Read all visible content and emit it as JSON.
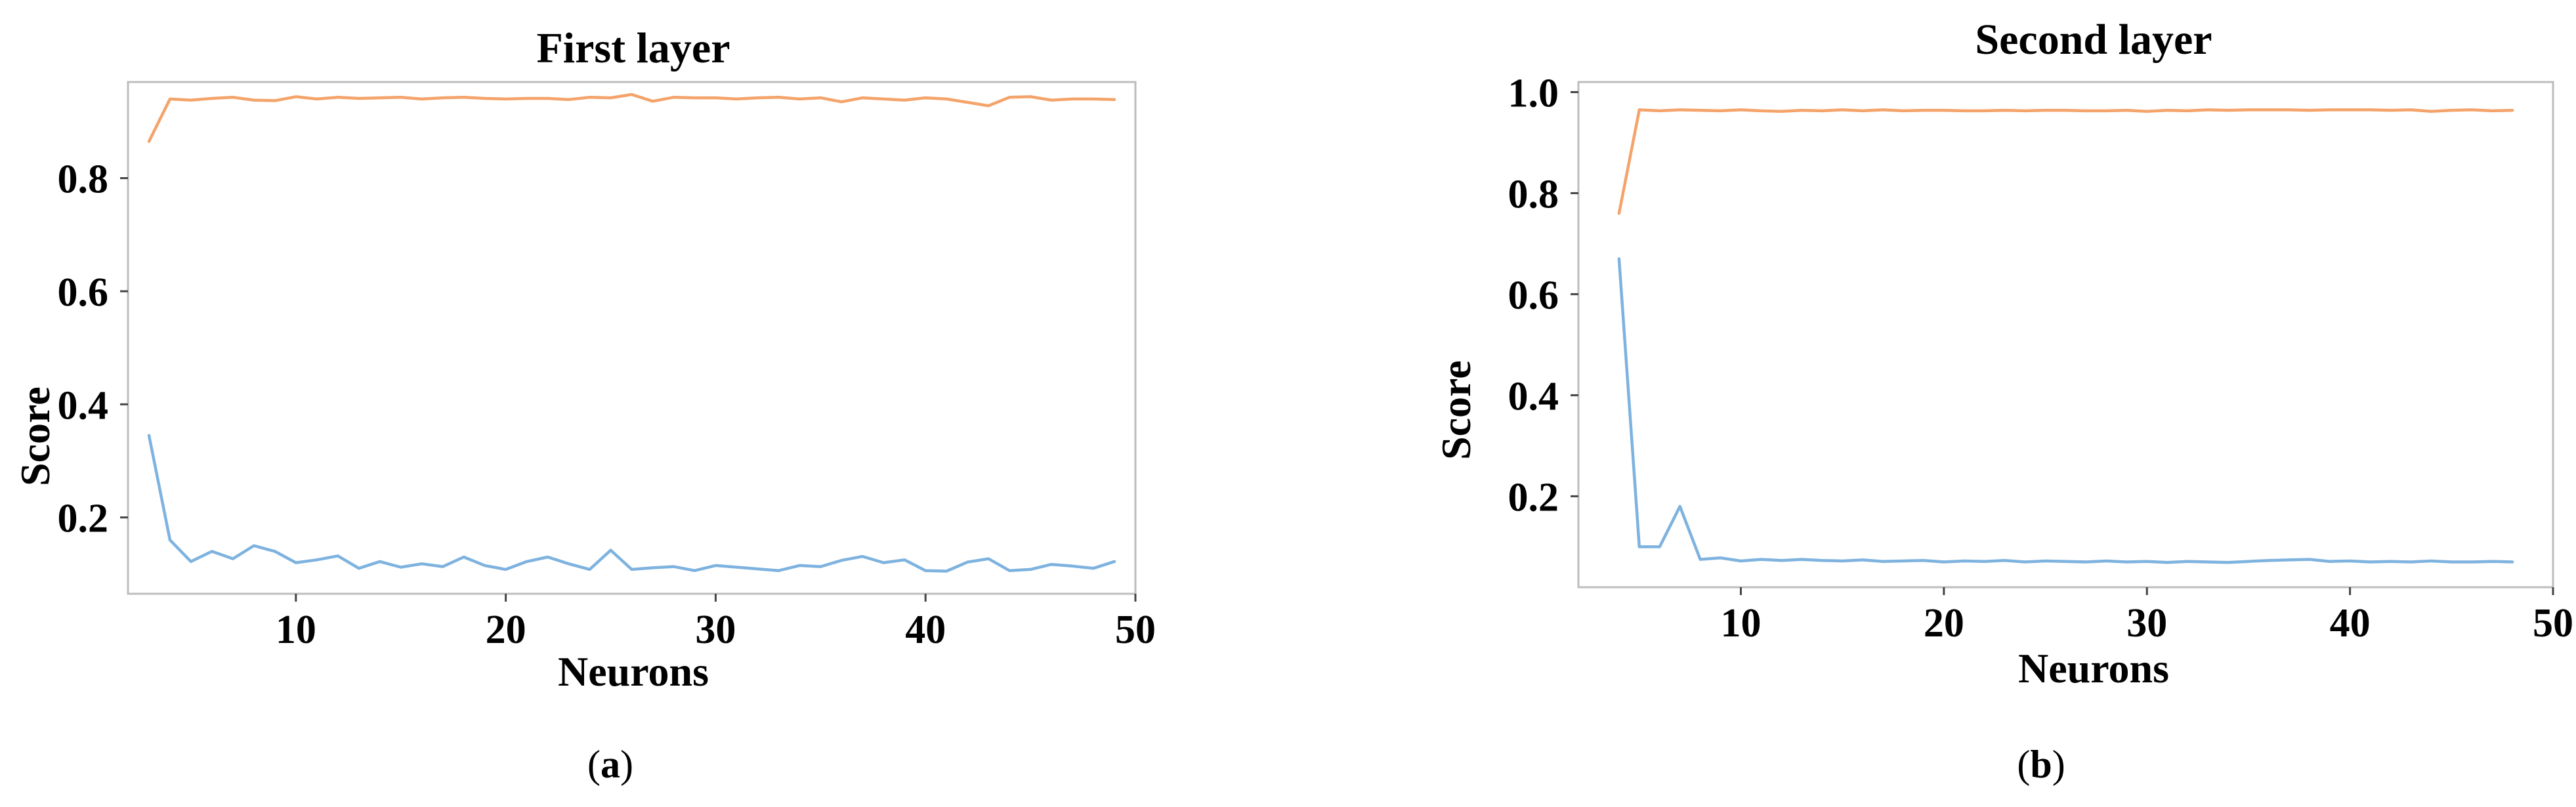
{
  "colors": {
    "series_upper": "#f4a36a",
    "series_lower": "#7eb2df"
  },
  "chart_data": [
    {
      "type": "line",
      "title": "First layer",
      "xlabel": "Neurons",
      "ylabel": "Score",
      "xlim": [
        2,
        50
      ],
      "ylim": [
        0.065,
        0.97
      ],
      "xticks": [
        10,
        20,
        30,
        40,
        50
      ],
      "yticks": [
        0.2,
        0.4,
        0.6,
        0.8
      ],
      "xtick_labels": [
        "10",
        "20",
        "30",
        "40",
        "50"
      ],
      "ytick_labels": [
        "0.2",
        "0.4",
        "0.6",
        "0.8"
      ],
      "caption": "(a)",
      "caption_letter": "a",
      "grid": false,
      "x": [
        3,
        4,
        5,
        6,
        7,
        8,
        9,
        10,
        11,
        12,
        13,
        14,
        15,
        16,
        17,
        18,
        19,
        20,
        21,
        22,
        23,
        24,
        25,
        26,
        27,
        28,
        29,
        30,
        31,
        32,
        33,
        34,
        35,
        36,
        37,
        38,
        39,
        40,
        41,
        42,
        43,
        44,
        45,
        46,
        47,
        48,
        49
      ],
      "series": [
        {
          "color": "#f4a36a",
          "values": [
            0.865,
            0.94,
            0.938,
            0.941,
            0.943,
            0.938,
            0.937,
            0.944,
            0.94,
            0.943,
            0.941,
            0.942,
            0.943,
            0.94,
            0.942,
            0.943,
            0.941,
            0.94,
            0.941,
            0.941,
            0.939,
            0.943,
            0.942,
            0.948,
            0.936,
            0.943,
            0.942,
            0.942,
            0.94,
            0.942,
            0.943,
            0.94,
            0.942,
            0.935,
            0.942,
            0.94,
            0.938,
            0.942,
            0.94,
            0.934,
            0.928,
            0.943,
            0.944,
            0.938,
            0.94,
            0.94,
            0.939
          ]
        },
        {
          "color": "#7eb2df",
          "values": [
            0.345,
            0.16,
            0.122,
            0.14,
            0.127,
            0.15,
            0.14,
            0.12,
            0.125,
            0.132,
            0.11,
            0.122,
            0.112,
            0.118,
            0.113,
            0.13,
            0.115,
            0.108,
            0.122,
            0.13,
            0.118,
            0.108,
            0.142,
            0.108,
            0.111,
            0.113,
            0.106,
            0.115,
            0.112,
            0.109,
            0.106,
            0.115,
            0.113,
            0.124,
            0.131,
            0.12,
            0.125,
            0.106,
            0.105,
            0.121,
            0.127,
            0.106,
            0.108,
            0.117,
            0.114,
            0.11,
            0.122
          ]
        }
      ]
    },
    {
      "type": "line",
      "title": "Second layer",
      "xlabel": "Neurons",
      "ylabel": "Score",
      "xlim": [
        2,
        50
      ],
      "ylim": [
        0.02,
        1.02
      ],
      "xticks": [
        10,
        20,
        30,
        40,
        50
      ],
      "yticks": [
        0.2,
        0.4,
        0.6,
        0.8,
        1.0
      ],
      "xtick_labels": [
        "10",
        "20",
        "30",
        "40",
        "50"
      ],
      "ytick_labels": [
        "0.2",
        "0.4",
        "0.6",
        "0.8",
        "1.0"
      ],
      "caption": "(b)",
      "caption_letter": "b",
      "grid": false,
      "x": [
        4,
        5,
        6,
        7,
        8,
        9,
        10,
        11,
        12,
        13,
        14,
        15,
        16,
        17,
        18,
        19,
        20,
        21,
        22,
        23,
        24,
        25,
        26,
        27,
        28,
        29,
        30,
        31,
        32,
        33,
        34,
        35,
        36,
        37,
        38,
        39,
        40,
        41,
        42,
        43,
        44,
        45,
        46,
        47,
        48
      ],
      "series": [
        {
          "color": "#f4a36a",
          "values": [
            0.76,
            0.965,
            0.963,
            0.965,
            0.964,
            0.963,
            0.965,
            0.963,
            0.962,
            0.964,
            0.963,
            0.965,
            0.963,
            0.965,
            0.963,
            0.964,
            0.964,
            0.963,
            0.963,
            0.964,
            0.963,
            0.964,
            0.964,
            0.963,
            0.963,
            0.964,
            0.962,
            0.964,
            0.963,
            0.965,
            0.964,
            0.965,
            0.965,
            0.965,
            0.964,
            0.965,
            0.965,
            0.965,
            0.964,
            0.965,
            0.962,
            0.964,
            0.965,
            0.963,
            0.964
          ]
        },
        {
          "color": "#7eb2df",
          "values": [
            0.67,
            0.1,
            0.1,
            0.18,
            0.075,
            0.078,
            0.072,
            0.075,
            0.073,
            0.075,
            0.073,
            0.072,
            0.074,
            0.071,
            0.072,
            0.073,
            0.07,
            0.072,
            0.071,
            0.073,
            0.07,
            0.072,
            0.071,
            0.07,
            0.072,
            0.07,
            0.071,
            0.069,
            0.071,
            0.07,
            0.069,
            0.071,
            0.073,
            0.074,
            0.075,
            0.071,
            0.072,
            0.07,
            0.071,
            0.07,
            0.072,
            0.07,
            0.07,
            0.071,
            0.07
          ]
        }
      ]
    }
  ]
}
